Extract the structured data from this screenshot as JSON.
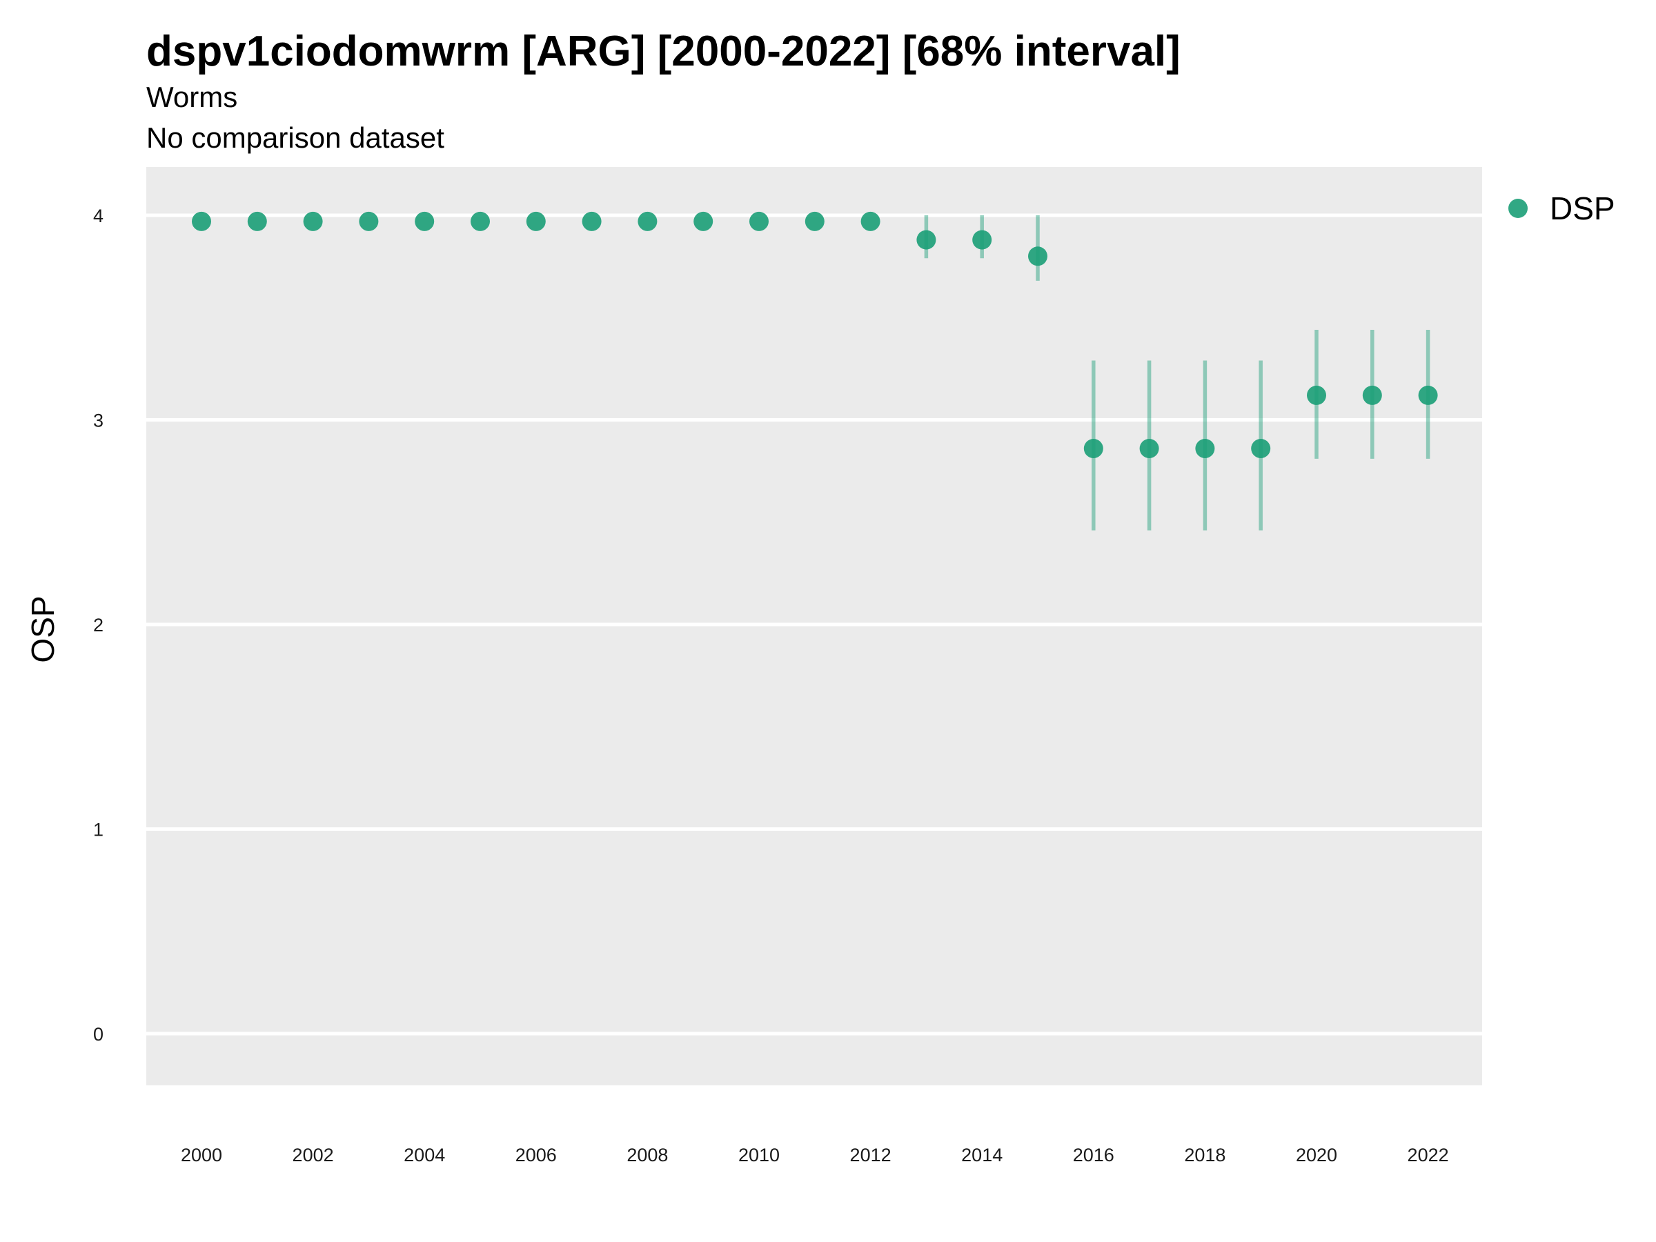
{
  "chart_data": {
    "type": "scatter",
    "title": "dspv1ciodomwrm [ARG] [2000-2022] [68% interval]",
    "subtitle": "Worms",
    "caption": "No comparison dataset",
    "xlabel": "",
    "ylabel": "OSP",
    "xlim": [
      1999,
      2023
    ],
    "ylim": [
      -0.25,
      4.25
    ],
    "x_ticks": [
      "2000",
      "2002",
      "2004",
      "2006",
      "2008",
      "2010",
      "2012",
      "2014",
      "2016",
      "2018",
      "2020",
      "2022"
    ],
    "y_ticks": [
      "0",
      "1",
      "2",
      "3",
      "4"
    ],
    "grid": true,
    "legend_position": "right",
    "series": [
      {
        "name": "DSP",
        "color": "#1b9e77",
        "points": [
          {
            "x": 2000,
            "y": 3.97
          },
          {
            "x": 2001,
            "y": 3.97
          },
          {
            "x": 2002,
            "y": 3.97
          },
          {
            "x": 2003,
            "y": 3.97
          },
          {
            "x": 2004,
            "y": 3.97
          },
          {
            "x": 2005,
            "y": 3.97
          },
          {
            "x": 2006,
            "y": 3.97
          },
          {
            "x": 2007,
            "y": 3.97
          },
          {
            "x": 2008,
            "y": 3.97
          },
          {
            "x": 2009,
            "y": 3.97
          },
          {
            "x": 2010,
            "y": 3.97
          },
          {
            "x": 2011,
            "y": 3.97
          },
          {
            "x": 2012,
            "y": 3.97
          },
          {
            "x": 2013,
            "y": 3.88,
            "lower": 3.79,
            "upper": 4.0
          },
          {
            "x": 2014,
            "y": 3.88,
            "lower": 3.79,
            "upper": 4.0
          },
          {
            "x": 2015,
            "y": 3.8,
            "lower": 3.68,
            "upper": 4.0
          },
          {
            "x": 2016,
            "y": 2.86,
            "lower": 2.46,
            "upper": 3.29
          },
          {
            "x": 2017,
            "y": 2.86,
            "lower": 2.46,
            "upper": 3.29
          },
          {
            "x": 2018,
            "y": 2.86,
            "lower": 2.46,
            "upper": 3.29
          },
          {
            "x": 2019,
            "y": 2.86,
            "lower": 2.46,
            "upper": 3.29
          },
          {
            "x": 2020,
            "y": 3.12,
            "lower": 2.81,
            "upper": 3.44
          },
          {
            "x": 2021,
            "y": 3.12,
            "lower": 2.81,
            "upper": 3.44
          },
          {
            "x": 2022,
            "y": 3.12,
            "lower": 2.81,
            "upper": 3.44
          }
        ]
      }
    ]
  },
  "colors": {
    "panel_background": "#ebebeb",
    "gridline": "#ffffff",
    "point": "#1b9e77",
    "interval": "#1b9e77"
  }
}
